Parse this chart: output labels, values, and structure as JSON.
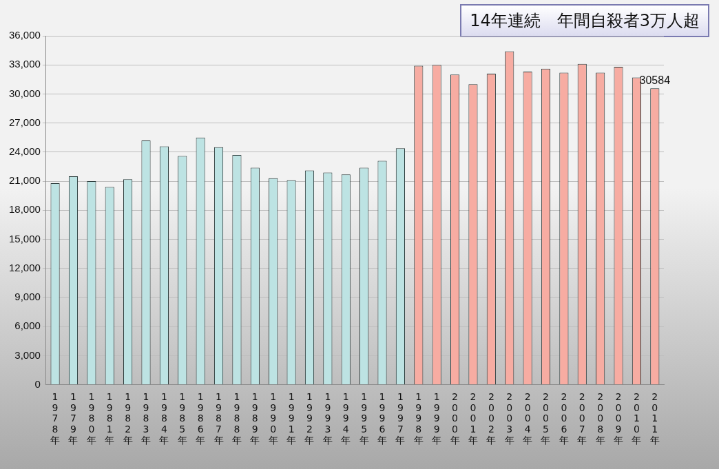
{
  "chart_data": {
    "type": "bar",
    "title": "14年連続　年間自殺者3万人超",
    "categories": [
      "1978年",
      "1979年",
      "1980年",
      "1981年",
      "1982年",
      "1983年",
      "1984年",
      "1985年",
      "1986年",
      "1987年",
      "1988年",
      "1989年",
      "1990年",
      "1991年",
      "1992年",
      "1993年",
      "1994年",
      "1995年",
      "1996年",
      "1997年",
      "1998年",
      "1999年",
      "2000年",
      "2001年",
      "2002年",
      "2003年",
      "2004年",
      "2005年",
      "2006年",
      "2007年",
      "2008年",
      "2009年",
      "2010年",
      "2011年"
    ],
    "values": [
      20800,
      21500,
      21000,
      20400,
      21200,
      25200,
      24600,
      23600,
      25500,
      24500,
      23700,
      22400,
      21300,
      21100,
      22100,
      21900,
      21700,
      22400,
      23100,
      24400,
      32900,
      33000,
      32000,
      31000,
      32100,
      34400,
      32300,
      32600,
      32200,
      33100,
      32200,
      32800,
      31700,
      30584
    ],
    "colors": [
      "#bde3e3",
      "#bde3e3",
      "#bde3e3",
      "#bde3e3",
      "#bde3e3",
      "#bde3e3",
      "#bde3e3",
      "#bde3e3",
      "#bde3e3",
      "#bde3e3",
      "#bde3e3",
      "#bde3e3",
      "#bde3e3",
      "#bde3e3",
      "#bde3e3",
      "#bde3e3",
      "#bde3e3",
      "#bde3e3",
      "#bde3e3",
      "#bde3e3",
      "#f7aca2",
      "#f7aca2",
      "#f7aca2",
      "#f7aca2",
      "#f7aca2",
      "#f7aca2",
      "#f7aca2",
      "#f7aca2",
      "#f7aca2",
      "#f7aca2",
      "#f7aca2",
      "#f7aca2",
      "#f7aca2",
      "#f7aca2"
    ],
    "value_labels": [
      null,
      null,
      null,
      null,
      null,
      null,
      null,
      null,
      null,
      null,
      null,
      null,
      null,
      null,
      null,
      null,
      null,
      null,
      null,
      null,
      null,
      null,
      null,
      null,
      null,
      null,
      null,
      null,
      null,
      null,
      null,
      null,
      null,
      "30584"
    ],
    "ylim": [
      0,
      36000
    ],
    "yticks": [
      {
        "value": 0,
        "label": "0"
      },
      {
        "value": 3000,
        "label": "3,000"
      },
      {
        "value": 6000,
        "label": "6,000"
      },
      {
        "value": 9000,
        "label": "9,000"
      },
      {
        "value": 12000,
        "label": "12,000"
      },
      {
        "value": 15000,
        "label": "15,000"
      },
      {
        "value": 18000,
        "label": "18,000"
      },
      {
        "value": 21000,
        "label": "21,000"
      },
      {
        "value": 24000,
        "label": "24,000"
      },
      {
        "value": 27000,
        "label": "27,000"
      },
      {
        "value": 30000,
        "label": "30,000"
      },
      {
        "value": 33000,
        "label": "33,000"
      },
      {
        "value": 36000,
        "label": "36,000"
      }
    ],
    "grid": "y"
  }
}
